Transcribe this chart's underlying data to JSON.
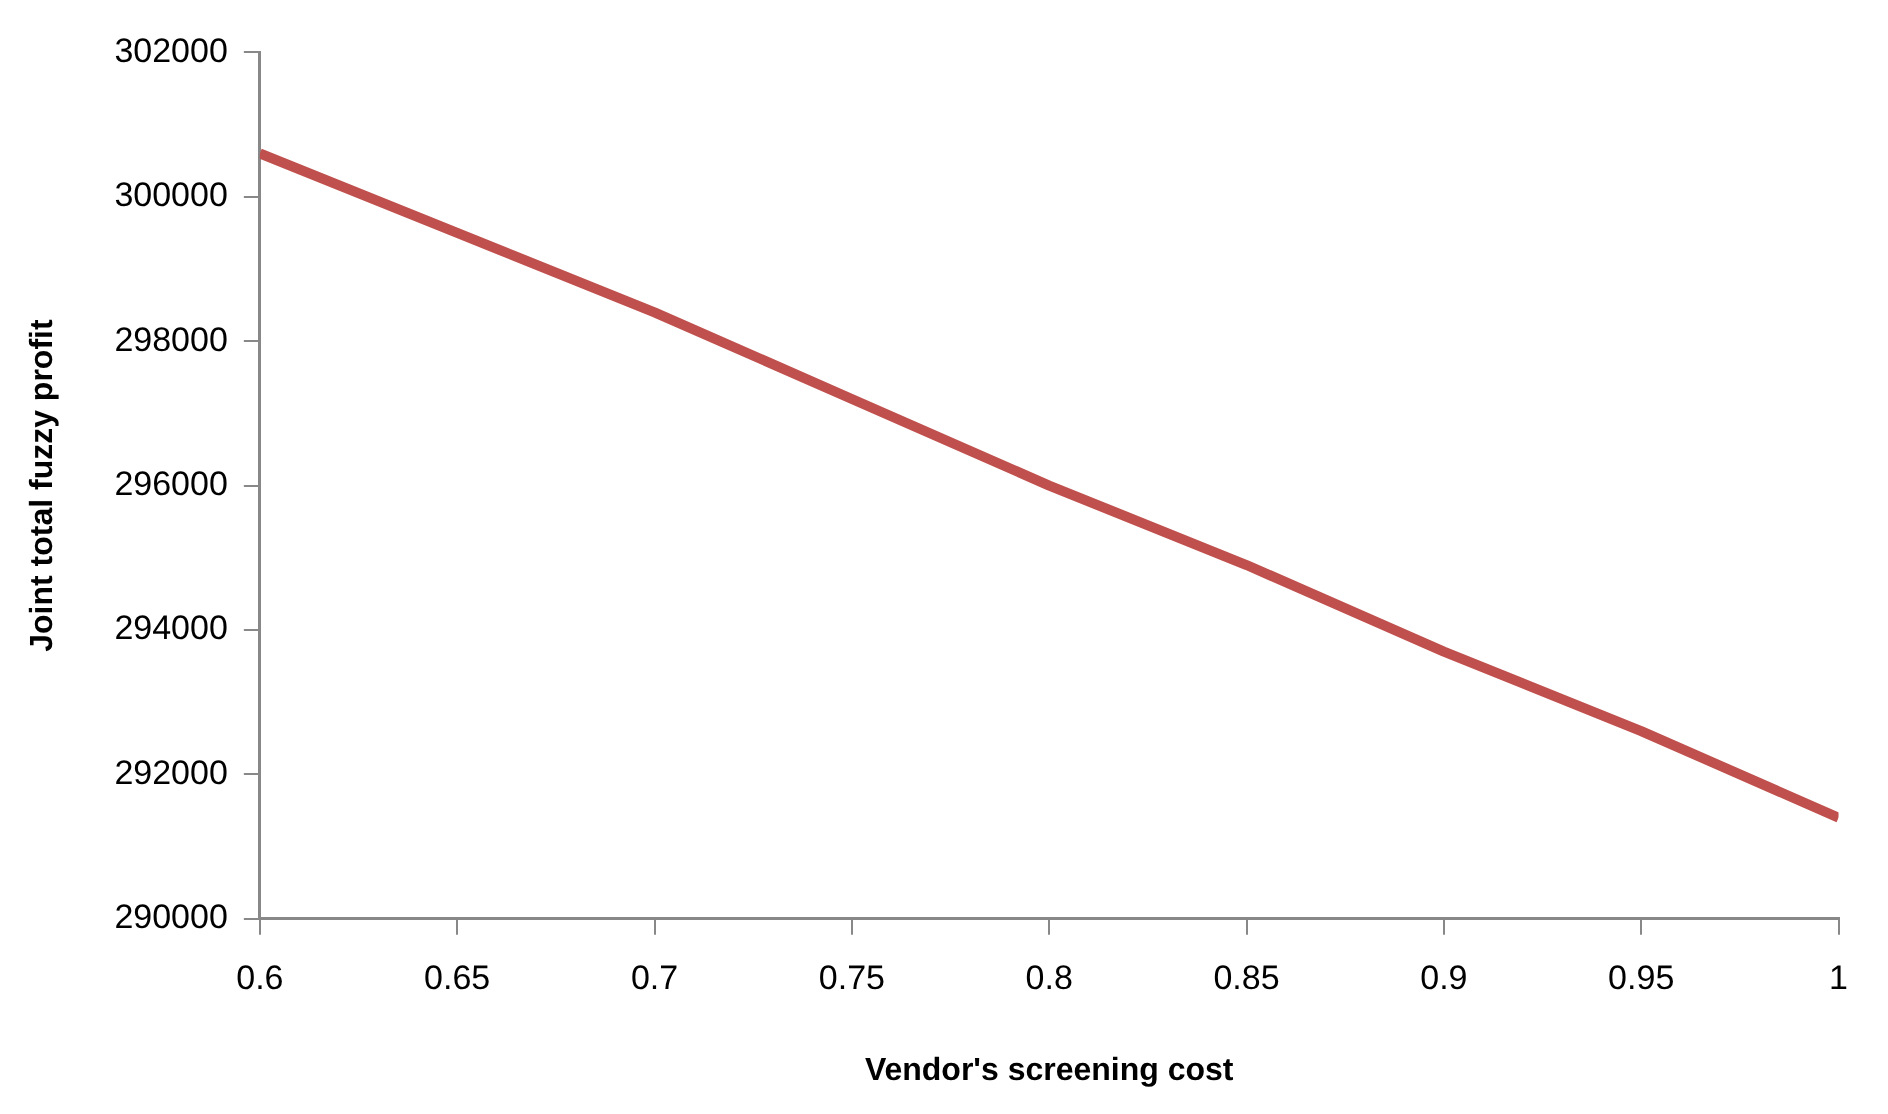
{
  "chart_data": {
    "type": "line",
    "xlabel": "Vendor's screening cost",
    "ylabel": "Joint total fuzzy profit",
    "x": [
      0.6,
      0.65,
      0.7,
      0.75,
      0.8,
      0.85,
      0.9,
      0.95,
      1
    ],
    "series": [
      {
        "color": "#c0504d",
        "values": [
          300600,
          299500,
          298400,
          297200,
          296000,
          294900,
          293700,
          292600,
          291400
        ]
      }
    ],
    "xlim": [
      0.6,
      1
    ],
    "xticks": [
      0.6,
      0.65,
      0.7,
      0.75,
      0.8,
      0.85,
      0.9,
      0.95,
      1
    ],
    "ylim": [
      290000,
      302000
    ],
    "yticks": [
      290000,
      292000,
      294000,
      296000,
      298000,
      300000,
      302000
    ],
    "grid": false,
    "legend": false,
    "marker": "none",
    "line_style": "solid"
  }
}
